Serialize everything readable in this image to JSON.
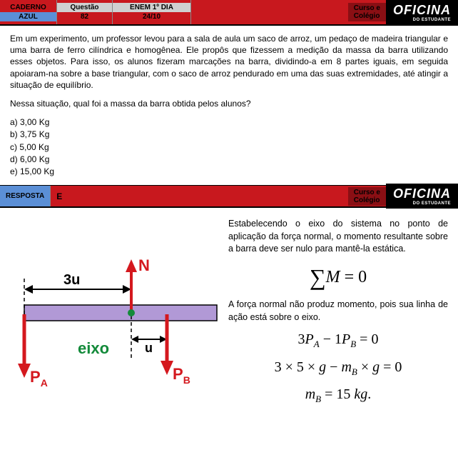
{
  "header": {
    "caderno_label": "CADERNO",
    "caderno_value": "AZUL",
    "questao_label": "Questão",
    "questao_value": "82",
    "enem_label": "ENEM 1º DIA",
    "enem_value": "24/10",
    "curso_line1": "Curso e",
    "curso_line2": "Colégio",
    "logo_main": "OFICINA",
    "logo_sub": "DO ESTUDANTE"
  },
  "question": {
    "text": "Em um experimento, um professor levou para a sala de aula um saco de arroz, um pedaço de madeira triangular e uma barra de ferro cilíndrica e homogênea. Ele propôs que fizessem a medição da massa da barra utilizando esses objetos. Para isso, os alunos fizeram marcações na barra, dividindo-a em 8 partes iguais, em seguida apoiaram-na sobre a base triangular, com o saco de arroz pendurado em uma das suas extremidades, até atingir a situação de equilíbrio.",
    "prompt": "Nessa situação, qual foi a massa da barra obtida pelos alunos?",
    "alts": {
      "a": "a)   3,00 Kg",
      "b": "b)   3,75 Kg",
      "c": "c)   5,00 Kg",
      "d": "d)   6,00 Kg",
      "e": "e)   15,00 Kg"
    }
  },
  "answer": {
    "label": "RESPOSTA",
    "value": "E"
  },
  "solution": {
    "p1": "Estabelecendo o eixo do sistema no ponto de aplicação da força normal, o momento resultante sobre a barra deve ser nulo para mantê-la estática.",
    "eq1": "∑ M = 0",
    "p2": "A força normal não produz momento, pois sua linha de ação está sobre o eixo.",
    "eq2_html": "3<i>P<span class='sub'>A</span></i> − 1<i>P<span class='sub'>B</span></i> = 0",
    "eq3_html": "3 × 5 × <i>g</i> − <i>m<span class='sub'>B</span></i> × <i>g</i> = 0",
    "eq4_html": "<i>m<span class='sub'>B</span></i> = 15 <i>kg</i>."
  },
  "diagram": {
    "bar_color": "#b199d6",
    "bar_stroke": "#000",
    "arrow_red": "#d4181e",
    "label_N": "N",
    "label_3u": "3u",
    "label_u": "u",
    "label_eixo": "eixo",
    "label_PA": "P",
    "label_PA_sub": "A",
    "label_PB": "P",
    "label_PB_sub": "B",
    "eixo_color": "#138a3a"
  }
}
